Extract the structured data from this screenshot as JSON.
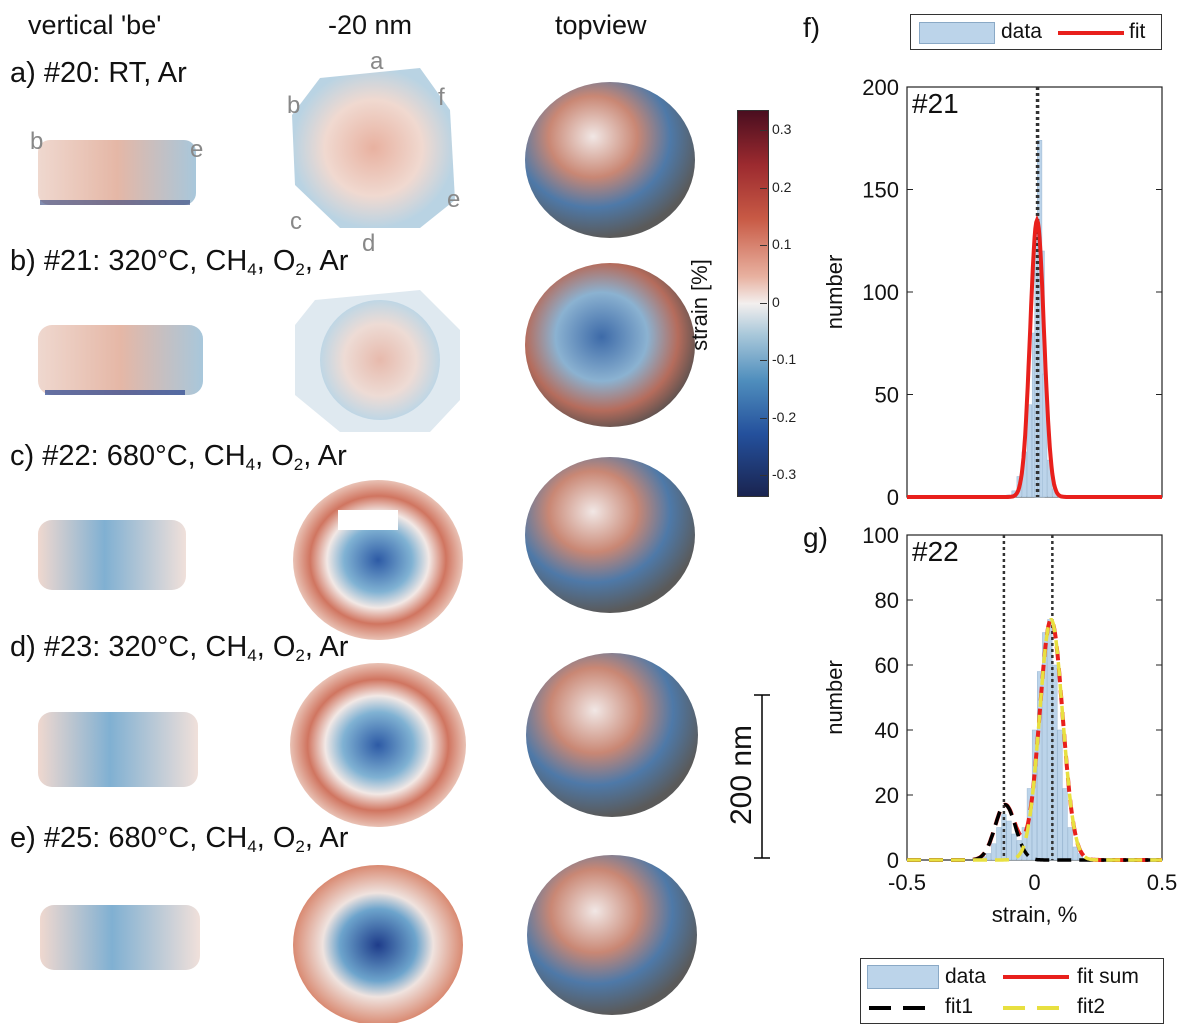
{
  "column_headers": {
    "col1": "vertical 'be'",
    "col2": "-20 nm",
    "col3": "topview"
  },
  "rows": [
    {
      "label": "a) #20: RT, Ar",
      "parts": []
    },
    {
      "label": "b) #21: 320°C, CH",
      "parts": [
        "4",
        ", O",
        "2",
        ", Ar"
      ]
    },
    {
      "label": "c) #22: 680°C, CH",
      "parts": [
        "4",
        ", O",
        "2",
        ", Ar"
      ]
    },
    {
      "label": "d) #23: 320°C, CH",
      "parts": [
        "4",
        ", O",
        "2",
        ", Ar"
      ]
    },
    {
      "label": "e) #25: 680°C, CH",
      "parts": [
        "4",
        ", O",
        "2",
        ", Ar"
      ]
    }
  ],
  "facet_letters": {
    "a": "a",
    "b": "b",
    "c": "c",
    "d": "d",
    "e": "e",
    "f": "f"
  },
  "colorbar": {
    "label": "strain [%]",
    "ticks": [
      "0.3",
      "0.2",
      "0.1",
      "0",
      "-0.1",
      "-0.2",
      "-0.3"
    ],
    "colors": {
      "pos_dark": "#4a0e1f",
      "pos": "#c85a45",
      "zero": "#f3efee",
      "neg": "#4f8ebd",
      "neg_dark": "#1a2450"
    }
  },
  "scale_bar": {
    "label": "200 nm"
  },
  "panel_letters": {
    "f": "f)",
    "g": "g)"
  },
  "legend_f": {
    "data": "data",
    "fit": "fit"
  },
  "legend_g": {
    "data": "data",
    "fit_sum": "fit sum",
    "fit1": "fit1",
    "fit2": "fit2"
  },
  "chart_data": [
    {
      "type": "bar",
      "panel": "f",
      "annotation": "#21",
      "xlabel": "",
      "ylabel": "number",
      "xlim": [
        -0.5,
        0.5
      ],
      "ylim": [
        0,
        200
      ],
      "yticks": [
        0,
        50,
        100,
        150,
        200
      ],
      "series": [
        {
          "name": "data",
          "kind": "histogram",
          "color": "#bcd4ea",
          "x": [
            -0.1,
            -0.08,
            -0.06,
            -0.04,
            -0.02,
            0.0,
            0.01,
            0.02,
            0.03,
            0.04,
            0.06,
            0.08,
            0.1
          ],
          "values": [
            1,
            3,
            10,
            22,
            45,
            80,
            130,
            174,
            120,
            60,
            18,
            4,
            1
          ]
        },
        {
          "name": "fit",
          "kind": "gaussian",
          "color": "#e8201c",
          "amplitude": 135,
          "mean": 0.01,
          "sigma": 0.027
        }
      ],
      "vlines": [
        0.01,
        0.014
      ],
      "grid": false
    },
    {
      "type": "bar",
      "panel": "g",
      "annotation": "#22",
      "xlabel": "strain, %",
      "ylabel": "number",
      "xlim": [
        -0.5,
        0.5
      ],
      "ylim": [
        0,
        100
      ],
      "xticks": [
        -0.5,
        0,
        0.5
      ],
      "yticks": [
        0,
        20,
        40,
        60,
        80,
        100
      ],
      "series": [
        {
          "name": "data",
          "kind": "histogram",
          "color": "#bcd4ea",
          "x": [
            -0.2,
            -0.18,
            -0.16,
            -0.14,
            -0.12,
            -0.1,
            -0.08,
            -0.06,
            -0.04,
            -0.02,
            0.0,
            0.02,
            0.04,
            0.06,
            0.08,
            0.1,
            0.12,
            0.14,
            0.16,
            0.18
          ],
          "values": [
            1,
            2,
            5,
            10,
            14,
            12,
            8,
            6,
            10,
            22,
            40,
            58,
            70,
            74,
            60,
            40,
            22,
            10,
            4,
            2
          ]
        },
        {
          "name": "fit1",
          "kind": "gaussian",
          "color": "#000000",
          "amplitude": 17,
          "mean": -0.115,
          "sigma": 0.04
        },
        {
          "name": "fit2",
          "kind": "gaussian",
          "color": "#e8e040",
          "amplitude": 74,
          "mean": 0.065,
          "sigma": 0.045
        },
        {
          "name": "fit sum",
          "kind": "sum",
          "color": "#e8201c"
        }
      ],
      "vlines": [
        -0.12,
        0.07
      ],
      "grid": false
    }
  ]
}
